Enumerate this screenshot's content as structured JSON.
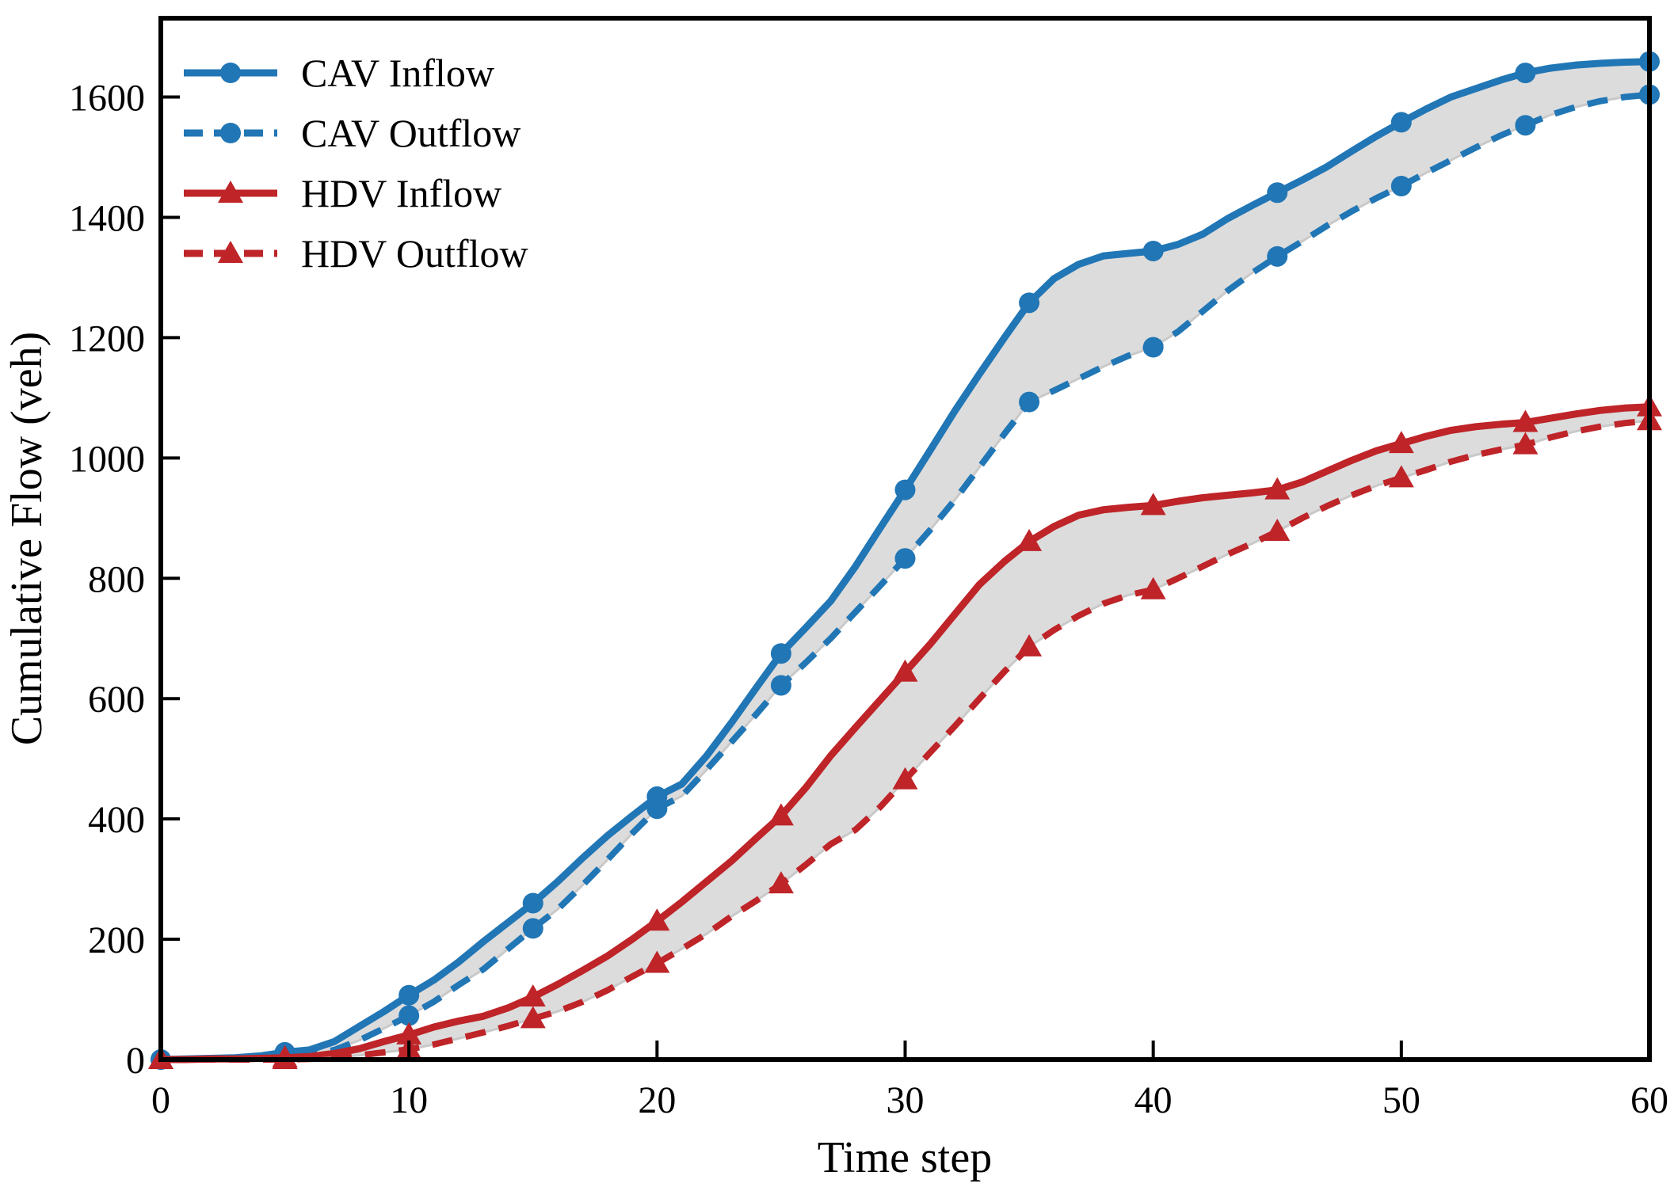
{
  "chart_data": {
    "type": "line",
    "title": "",
    "xlabel": "Time step",
    "ylabel": "Cumulative Flow (veh)",
    "xlim": [
      0,
      60
    ],
    "ylim": [
      0,
      1731
    ],
    "xticks": [
      0,
      10,
      20,
      30,
      40,
      50,
      60
    ],
    "yticks": [
      0,
      200,
      400,
      600,
      800,
      1000,
      1200,
      1400,
      1600
    ],
    "grid": false,
    "legend_position": "upper left",
    "marker_every": 5,
    "band_fill_color": "#dcdcdc",
    "band_edge_color": "#c9c9c9",
    "frame_color": "#000000",
    "x": [
      0,
      1,
      2,
      3,
      4,
      5,
      6,
      7,
      8,
      9,
      10,
      11,
      12,
      13,
      14,
      15,
      16,
      17,
      18,
      19,
      20,
      21,
      22,
      23,
      24,
      25,
      26,
      27,
      28,
      29,
      30,
      31,
      32,
      33,
      34,
      35,
      36,
      37,
      38,
      39,
      40,
      41,
      42,
      43,
      44,
      45,
      46,
      47,
      48,
      49,
      50,
      51,
      52,
      53,
      54,
      55,
      56,
      57,
      58,
      59,
      60
    ],
    "series": [
      {
        "name": "CAV Inflow",
        "color": "#2176b5",
        "line_style": "solid",
        "marker": "circle",
        "y": [
          0,
          1,
          2,
          3,
          6,
          12,
          16,
          30,
          55,
          80,
          107,
          132,
          162,
          196,
          228,
          260,
          296,
          335,
          372,
          405,
          437,
          458,
          505,
          560,
          618,
          675,
          718,
          762,
          820,
          884,
          947,
          1012,
          1078,
          1140,
          1200,
          1258,
          1298,
          1322,
          1336,
          1340,
          1344,
          1355,
          1372,
          1398,
          1420,
          1441,
          1462,
          1484,
          1510,
          1535,
          1558,
          1580,
          1600,
          1614,
          1628,
          1640,
          1648,
          1653,
          1656,
          1658,
          1659
        ]
      },
      {
        "name": "CAV Outflow",
        "color": "#2176b5",
        "line_style": "dashed",
        "marker": "circle",
        "y": [
          0,
          0,
          1,
          1,
          2,
          4,
          8,
          16,
          32,
          52,
          73,
          96,
          124,
          150,
          184,
          218,
          250,
          290,
          332,
          376,
          417,
          438,
          482,
          528,
          574,
          622,
          660,
          700,
          744,
          788,
          833,
          880,
          930,
          985,
          1040,
          1093,
          1112,
          1132,
          1152,
          1170,
          1184,
          1210,
          1244,
          1278,
          1308,
          1335,
          1360,
          1386,
          1410,
          1432,
          1452,
          1474,
          1495,
          1516,
          1536,
          1553,
          1570,
          1583,
          1593,
          1600,
          1604
        ]
      },
      {
        "name": "HDV Inflow",
        "color": "#be2428",
        "line_style": "solid",
        "marker": "triangle",
        "y": [
          0,
          0,
          1,
          1,
          2,
          3,
          5,
          10,
          18,
          30,
          41,
          54,
          64,
          72,
          86,
          104,
          125,
          148,
          172,
          200,
          230,
          262,
          296,
          330,
          368,
          405,
          452,
          505,
          552,
          598,
          644,
          690,
          740,
          790,
          828,
          861,
          886,
          905,
          914,
          918,
          921,
          928,
          934,
          938,
          942,
          947,
          960,
          978,
          996,
          1012,
          1024,
          1036,
          1046,
          1052,
          1056,
          1059,
          1066,
          1073,
          1079,
          1083,
          1085
        ]
      },
      {
        "name": "HDV Outflow",
        "color": "#be2428",
        "line_style": "dashed",
        "marker": "triangle",
        "y": [
          0,
          0,
          0,
          0,
          0,
          0,
          1,
          3,
          7,
          12,
          17,
          25,
          35,
          45,
          56,
          68,
          80,
          96,
          115,
          138,
          160,
          184,
          209,
          238,
          264,
          292,
          324,
          358,
          382,
          420,
          465,
          510,
          554,
          600,
          645,
          686,
          714,
          738,
          758,
          772,
          781,
          800,
          820,
          840,
          858,
          878,
          900,
          920,
          938,
          954,
          967,
          980,
          994,
          1005,
          1014,
          1022,
          1034,
          1044,
          1052,
          1058,
          1062
        ]
      }
    ],
    "bands": [
      {
        "upper": "CAV Inflow",
        "lower": "CAV Outflow"
      },
      {
        "upper": "HDV Inflow",
        "lower": "HDV Outflow"
      }
    ]
  }
}
